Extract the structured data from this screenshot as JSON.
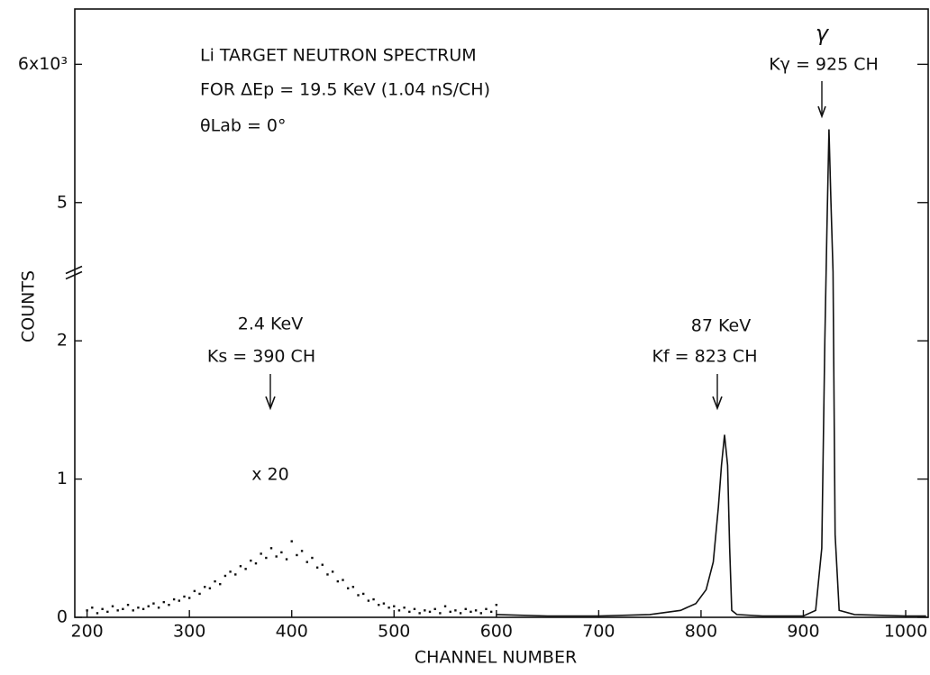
{
  "chart_data": {
    "type": "scatter",
    "title": [
      "Li TARGET NEUTRON SPECTRUM",
      "FOR ΔEp = 19.5 KeV (1.04 nS/CH)",
      "θLab = 0°"
    ],
    "xlabel": "CHANNEL NUMBER",
    "ylabel": "COUNTS",
    "xlim": [
      188,
      1022
    ],
    "xticks": [
      200,
      300,
      400,
      500,
      600,
      700,
      800,
      900,
      1000
    ],
    "ylim": [
      0,
      6.4
    ],
    "yticks": [
      0,
      1,
      2,
      5,
      {
        "value": 6,
        "label": "6x10³"
      }
    ],
    "y_break": [
      2.5,
      4.5
    ],
    "annotations": [
      "2.4 KeV",
      "Ks = 390 CH",
      "x 20",
      "87 KeV",
      "Kf = 823 CH",
      "γ",
      "Kγ = 925 CH"
    ],
    "series": [
      {
        "kind": "points",
        "color": "#111",
        "x": [
          200,
          205,
          210,
          215,
          220,
          225,
          230,
          235,
          240,
          245,
          250,
          255,
          260,
          265,
          270,
          275,
          280,
          285,
          290,
          295,
          300,
          305,
          310,
          315,
          320,
          325,
          330,
          335,
          340,
          345,
          350,
          355,
          360,
          365,
          370,
          375,
          380,
          385,
          390,
          395,
          400,
          405,
          410,
          415,
          420,
          425,
          430,
          435,
          440,
          445,
          450,
          455,
          460,
          465,
          470,
          475,
          480,
          485,
          490,
          495,
          500,
          505,
          510,
          515,
          520,
          525,
          530,
          535,
          540,
          545,
          550,
          555,
          560,
          565,
          570,
          575,
          580,
          585,
          590,
          595,
          600
        ],
        "values": [
          0.05,
          0.07,
          0.03,
          0.06,
          0.04,
          0.08,
          0.05,
          0.06,
          0.09,
          0.05,
          0.07,
          0.06,
          0.08,
          0.1,
          0.07,
          0.11,
          0.09,
          0.13,
          0.12,
          0.15,
          0.14,
          0.19,
          0.17,
          0.22,
          0.21,
          0.26,
          0.24,
          0.3,
          0.33,
          0.31,
          0.37,
          0.35,
          0.41,
          0.39,
          0.46,
          0.43,
          0.5,
          0.44,
          0.47,
          0.42,
          0.55,
          0.45,
          0.48,
          0.4,
          0.43,
          0.36,
          0.38,
          0.31,
          0.33,
          0.26,
          0.27,
          0.21,
          0.22,
          0.16,
          0.17,
          0.12,
          0.13,
          0.09,
          0.1,
          0.07,
          0.08,
          0.05,
          0.07,
          0.04,
          0.06,
          0.03,
          0.05,
          0.04,
          0.06,
          0.03,
          0.08,
          0.04,
          0.05,
          0.03,
          0.06,
          0.04,
          0.05,
          0.03,
          0.06,
          0.04,
          0.09
        ]
      },
      {
        "kind": "line",
        "color": "#111",
        "x": [
          600,
          650,
          700,
          750,
          780,
          795,
          805,
          812,
          817,
          820,
          823,
          826,
          828,
          830,
          835,
          860,
          900,
          912,
          918,
          921,
          923,
          925,
          927,
          929,
          931,
          935,
          950,
          1000,
          1020
        ],
        "values": [
          0.02,
          0.01,
          0.01,
          0.02,
          0.05,
          0.1,
          0.2,
          0.4,
          0.8,
          1.1,
          1.32,
          1.1,
          0.5,
          0.05,
          0.02,
          0.01,
          0.01,
          0.05,
          0.5,
          2.0,
          4.8,
          5.53,
          5.0,
          2.5,
          0.6,
          0.05,
          0.02,
          0.01,
          0.01
        ]
      }
    ]
  }
}
